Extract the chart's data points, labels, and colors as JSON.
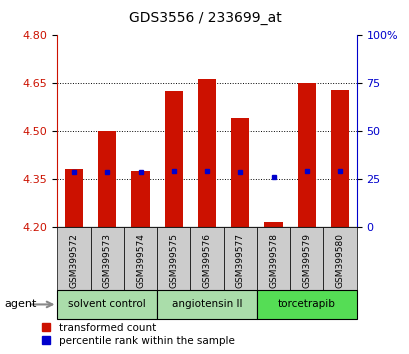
{
  "title": "GDS3556 / 233699_at",
  "samples": [
    "GSM399572",
    "GSM399573",
    "GSM399574",
    "GSM399575",
    "GSM399576",
    "GSM399577",
    "GSM399578",
    "GSM399579",
    "GSM399580"
  ],
  "bar_tops": [
    4.38,
    4.5,
    4.375,
    4.625,
    4.663,
    4.54,
    4.215,
    4.65,
    4.63
  ],
  "bar_base": 4.2,
  "blue_dot_values": [
    4.37,
    4.37,
    4.37,
    4.373,
    4.373,
    4.372,
    4.356,
    4.374,
    4.373
  ],
  "ylim_left": [
    4.2,
    4.8
  ],
  "ylim_right": [
    0,
    100
  ],
  "yticks_left": [
    4.2,
    4.35,
    4.5,
    4.65,
    4.8
  ],
  "yticks_right": [
    0,
    25,
    50,
    75,
    100
  ],
  "ytick_labels_right": [
    "0",
    "25",
    "50",
    "75",
    "100%"
  ],
  "bar_color": "#cc1100",
  "dot_color": "#0000cc",
  "groups": [
    {
      "label": "solvent control",
      "indices": [
        0,
        1,
        2
      ],
      "color": "#aaddaa"
    },
    {
      "label": "angiotensin II",
      "indices": [
        3,
        4,
        5
      ],
      "color": "#aaddaa"
    },
    {
      "label": "torcetrapib",
      "indices": [
        6,
        7,
        8
      ],
      "color": "#55dd55"
    }
  ],
  "legend": [
    "transformed count",
    "percentile rank within the sample"
  ],
  "tick_label_color_left": "#cc1100",
  "tick_label_color_right": "#0000cc",
  "bar_width": 0.55
}
